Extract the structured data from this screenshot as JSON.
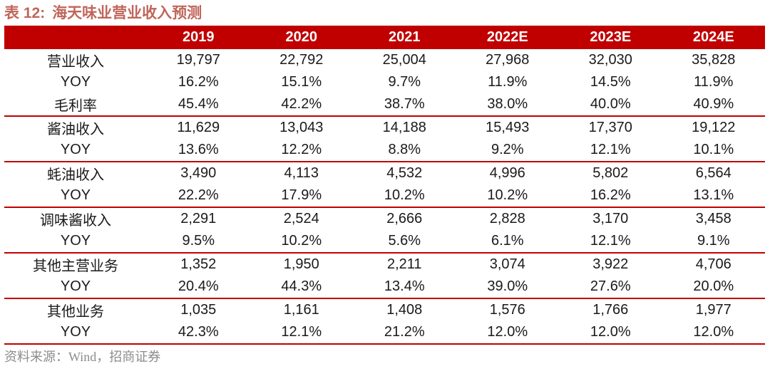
{
  "title": {
    "prefix": "表 12:",
    "text": "海天味业营业收入预测"
  },
  "table": {
    "corner_label": "",
    "columns": [
      "2019",
      "2020",
      "2021",
      "2022E",
      "2023E",
      "2024E"
    ],
    "groups": [
      {
        "rows": [
          {
            "label": "营业收入",
            "values": [
              "19,797",
              "22,792",
              "25,004",
              "27,968",
              "32,030",
              "35,828"
            ]
          },
          {
            "label": "YOY",
            "values": [
              "16.2%",
              "15.1%",
              "9.7%",
              "11.9%",
              "14.5%",
              "11.9%"
            ]
          },
          {
            "label": "毛利率",
            "values": [
              "45.4%",
              "42.2%",
              "38.7%",
              "38.0%",
              "40.0%",
              "40.9%"
            ]
          }
        ]
      },
      {
        "rows": [
          {
            "label": "酱油收入",
            "values": [
              "11,629",
              "13,043",
              "14,188",
              "15,493",
              "17,370",
              "19,122"
            ]
          },
          {
            "label": "YOY",
            "values": [
              "13.6%",
              "12.2%",
              "8.8%",
              "9.2%",
              "12.1%",
              "10.1%"
            ]
          }
        ]
      },
      {
        "rows": [
          {
            "label": "蚝油收入",
            "values": [
              "3,490",
              "4,113",
              "4,532",
              "4,996",
              "5,802",
              "6,564"
            ]
          },
          {
            "label": "YOY",
            "values": [
              "22.2%",
              "17.9%",
              "10.2%",
              "10.2%",
              "16.2%",
              "13.1%"
            ]
          }
        ]
      },
      {
        "rows": [
          {
            "label": "调味酱收入",
            "values": [
              "2,291",
              "2,524",
              "2,666",
              "2,828",
              "3,170",
              "3,458"
            ]
          },
          {
            "label": "YOY",
            "values": [
              "9.5%",
              "10.2%",
              "5.6%",
              "6.1%",
              "12.1%",
              "9.1%"
            ]
          }
        ]
      },
      {
        "rows": [
          {
            "label": "其他主营业务",
            "values": [
              "1,352",
              "1,950",
              "2,211",
              "3,074",
              "3,922",
              "4,706"
            ]
          },
          {
            "label": "YOY",
            "values": [
              "20.4%",
              "44.3%",
              "13.4%",
              "39.0%",
              "27.6%",
              "20.0%"
            ]
          }
        ]
      },
      {
        "rows": [
          {
            "label": "其他业务",
            "values": [
              "1,035",
              "1,161",
              "1,408",
              "1,576",
              "1,766",
              "1,977"
            ]
          },
          {
            "label": "YOY",
            "values": [
              "42.3%",
              "12.1%",
              "21.2%",
              "12.0%",
              "12.0%",
              "12.0%"
            ]
          }
        ]
      }
    ]
  },
  "footer": {
    "source_text": "资料来源：Wind，招商证券"
  },
  "colors": {
    "header_bg": "#C00000",
    "divider": "#C00000",
    "title": "#C0655A",
    "footer_text": "#8C8C8C"
  }
}
